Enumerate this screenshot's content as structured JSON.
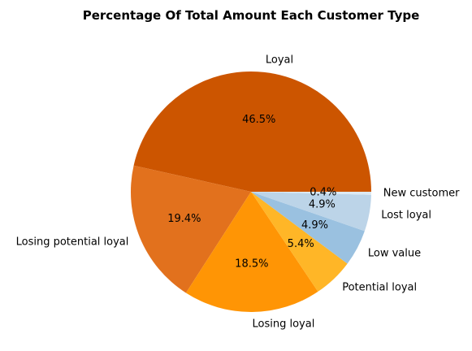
{
  "chart_data": {
    "type": "pie",
    "title": "Percentage Of Total Amount Each Customer Type",
    "start_angle_deg": 0,
    "direction": "counterclockwise",
    "slices": [
      {
        "label": "Loyal",
        "value": 46.5,
        "pct_label": "46.5%",
        "color": "#CC5500"
      },
      {
        "label": "Losing potential loyal",
        "value": 19.4,
        "pct_label": "19.4%",
        "color": "#E2711D"
      },
      {
        "label": "Losing loyal",
        "value": 18.5,
        "pct_label": "18.5%",
        "color": "#FF9505"
      },
      {
        "label": "Potential loyal",
        "value": 5.4,
        "pct_label": "5.4%",
        "color": "#FFB627"
      },
      {
        "label": "Low value",
        "value": 4.9,
        "pct_label": "4.9%",
        "color": "#9AC1E0"
      },
      {
        "label": "Lost loyal",
        "value": 4.9,
        "pct_label": "4.9%",
        "color": "#BCD4E8"
      },
      {
        "label": "New customer",
        "value": 0.4,
        "pct_label": "0.4%",
        "color": "#DCE9F3"
      }
    ]
  }
}
